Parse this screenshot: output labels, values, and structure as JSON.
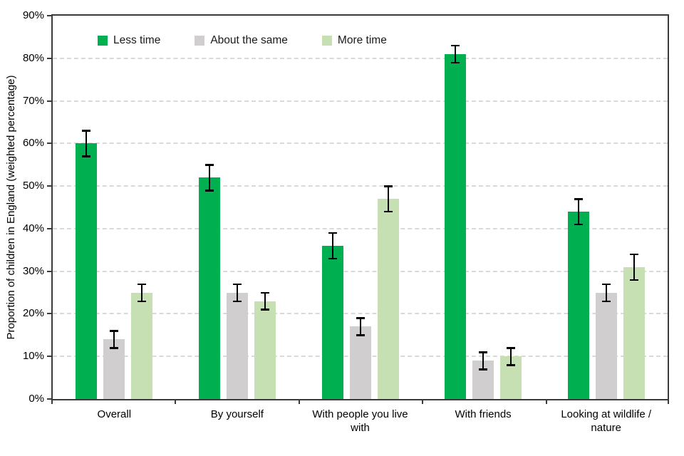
{
  "figure": {
    "background": "#ffffff"
  },
  "chart_data": {
    "type": "bar",
    "title": "",
    "xlabel": "",
    "ylabel": "Proportion of children in England (weighted percentage)",
    "ylim": [
      0,
      90
    ],
    "ytick_step": 10,
    "ytick_labels": [
      "0%",
      "10%",
      "20%",
      "30%",
      "40%",
      "50%",
      "60%",
      "70%",
      "80%",
      "90%"
    ],
    "grid": "horizontal-dashed",
    "legend_position": "top-inside-horizontal",
    "categories": [
      "Overall",
      "By yourself",
      "With people you live with",
      "With friends",
      "Looking at wildlife / nature"
    ],
    "series": [
      {
        "name": "Less time",
        "color": "#00B050",
        "values": [
          60,
          52,
          36,
          81,
          44
        ],
        "error": [
          3,
          3,
          3,
          2,
          3
        ]
      },
      {
        "name": "About the same",
        "color": "#D0CECE",
        "values": [
          14,
          25,
          17,
          9,
          25
        ],
        "error": [
          2,
          2,
          2,
          2,
          2
        ]
      },
      {
        "name": "More time",
        "color": "#C6E0B4",
        "values": [
          25,
          23,
          47,
          10,
          31
        ],
        "error": [
          2,
          2,
          3,
          2,
          3
        ]
      }
    ],
    "error_bars": "symmetric, black, capped",
    "axis_color": "#3b3b3b",
    "gridline_color": "#d9d9d9",
    "error_bar_color": "#000000"
  }
}
